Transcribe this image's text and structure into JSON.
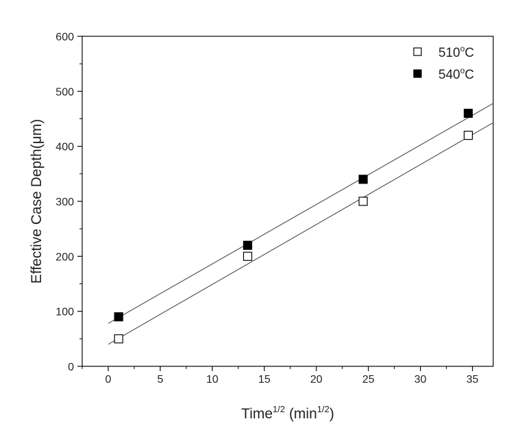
{
  "chart_data": {
    "type": "scatter",
    "x_label": {
      "base": "Time",
      "sup": "1/2",
      "mid": " (min",
      "sup2": "1/2",
      "end": ")"
    },
    "y_label": {
      "text": "Effective Case Depth(",
      "mu": "μ",
      "end": "m)"
    },
    "xlim": [
      -2.5,
      37
    ],
    "ylim": [
      0,
      600
    ],
    "x_ticks": [
      0,
      5,
      10,
      15,
      20,
      25,
      30,
      35
    ],
    "x_ticks_minor": [
      -2.5,
      2.5,
      7.5,
      12.5,
      17.5,
      22.5,
      27.5,
      32.5
    ],
    "y_ticks": [
      0,
      100,
      200,
      300,
      400,
      500,
      600
    ],
    "y_ticks_minor": [
      50,
      150,
      250,
      350,
      450,
      550
    ],
    "legend_position": "top-right",
    "series": [
      {
        "name": {
          "base": "510",
          "sup": "o",
          "end": "C"
        },
        "marker": "open-square",
        "color": "#000000",
        "x": [
          1,
          13.4,
          24.5,
          34.6
        ],
        "y": [
          50,
          200,
          300,
          420
        ],
        "fit_line": {
          "x": [
            0,
            37
          ],
          "y": [
            40,
            443
          ]
        }
      },
      {
        "name": {
          "base": "540",
          "sup": "o",
          "end": "C"
        },
        "marker": "filled-square",
        "color": "#000000",
        "x": [
          1,
          13.4,
          24.5,
          34.6
        ],
        "y": [
          90,
          220,
          340,
          460
        ],
        "fit_line": {
          "x": [
            0,
            37
          ],
          "y": [
            78,
            478
          ]
        }
      }
    ]
  }
}
